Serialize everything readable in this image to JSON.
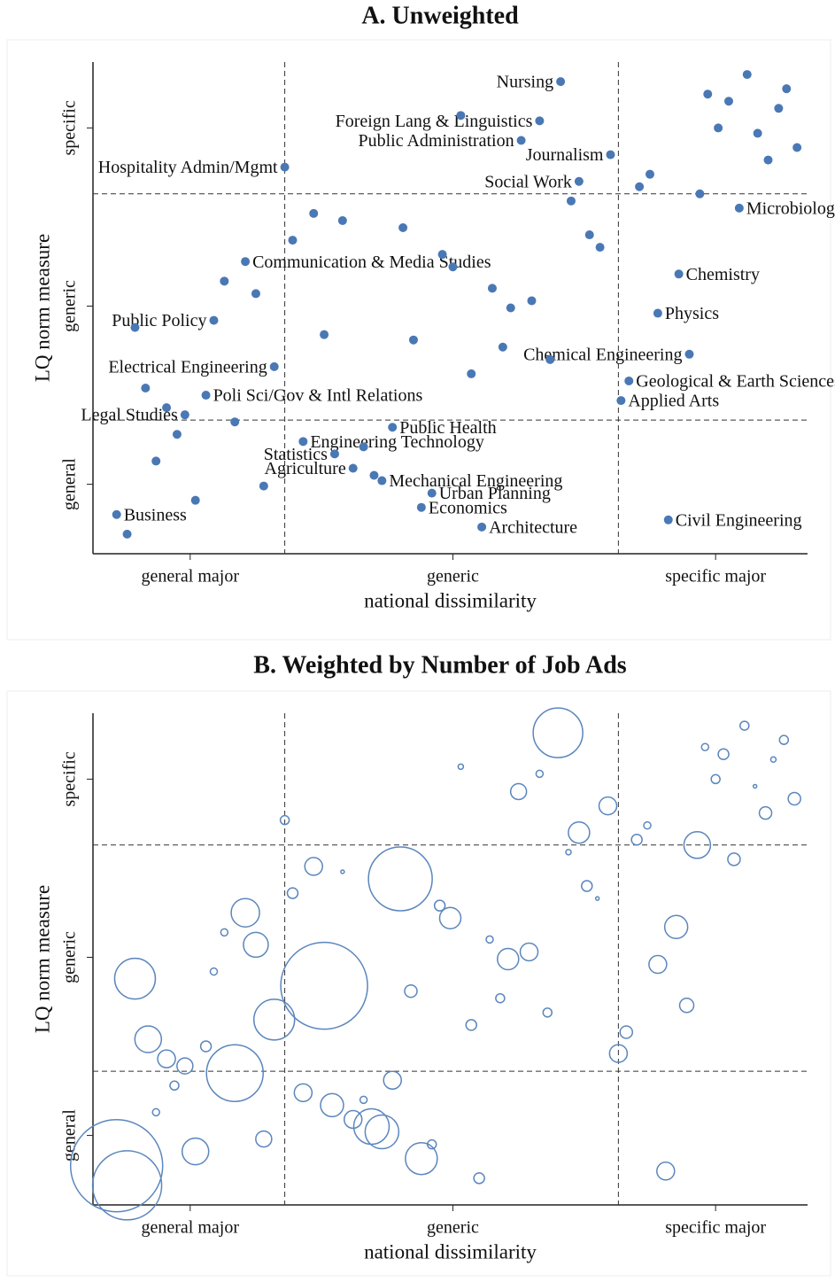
{
  "chart_data": [
    {
      "type": "scatter",
      "title": "A.  Unweighted",
      "xlabel": "national dissimilarity",
      "ylabel": "LQ norm measure",
      "color": "#4a78b5",
      "xlim": [
        0.63,
        3.35
      ],
      "ylim": [
        0.61,
        3.37
      ],
      "xticks": [
        {
          "value": 1,
          "label": "general major"
        },
        {
          "value": 2,
          "label": "generic"
        },
        {
          "value": 3,
          "label": "specific major"
        }
      ],
      "yticks": [
        {
          "value": 1,
          "label": "general"
        },
        {
          "value": 2,
          "label": "generic"
        },
        {
          "value": 3,
          "label": "specific"
        }
      ],
      "vlines": [
        1.36,
        2.63
      ],
      "hlines": [
        1.36,
        2.63
      ],
      "x": [
        2.41,
        2.33,
        2.03,
        2.26,
        2.6,
        1.36,
        2.48,
        2.71,
        2.75,
        2.97,
        3.05,
        3.12,
        3.27,
        3.24,
        3.01,
        3.16,
        3.2,
        3.31,
        2.94,
        3.09,
        2.45,
        1.47,
        1.58,
        1.81,
        1.39,
        2.52,
        2.56,
        1.21,
        1.96,
        2.0,
        1.13,
        1.25,
        2.15,
        2.22,
        2.3,
        2.86,
        2.78,
        1.09,
        0.79,
        1.51,
        1.85,
        2.19,
        2.9,
        2.37,
        1.32,
        2.07,
        2.67,
        0.83,
        1.06,
        2.64,
        0.91,
        0.98,
        1.17,
        1.77,
        0.95,
        1.43,
        1.66,
        1.55,
        0.87,
        1.62,
        1.7,
        1.73,
        1.28,
        1.92,
        1.02,
        1.88,
        0.72,
        2.11,
        0.76,
        2.82
      ],
      "y": [
        3.26,
        3.04,
        3.07,
        2.93,
        2.85,
        2.78,
        2.7,
        2.67,
        2.74,
        3.19,
        3.15,
        3.3,
        3.22,
        3.11,
        3.0,
        2.97,
        2.82,
        2.89,
        2.63,
        2.55,
        2.59,
        2.52,
        2.48,
        2.44,
        2.37,
        2.4,
        2.33,
        2.25,
        2.29,
        2.22,
        2.14,
        2.07,
        2.1,
        1.99,
        2.03,
        2.18,
        1.96,
        1.92,
        1.88,
        1.84,
        1.81,
        1.77,
        1.73,
        1.7,
        1.66,
        1.62,
        1.58,
        1.54,
        1.5,
        1.47,
        1.43,
        1.39,
        1.35,
        1.32,
        1.28,
        1.24,
        1.21,
        1.17,
        1.13,
        1.09,
        1.05,
        1.02,
        0.99,
        0.95,
        0.91,
        0.87,
        0.83,
        0.76,
        0.72,
        0.8
      ],
      "labels": [
        "Nursing",
        "Foreign Lang & Linguistics",
        null,
        "Public Administration",
        "Journalism",
        "Hospitality Admin/Mgmt",
        "Social Work",
        null,
        null,
        null,
        null,
        null,
        null,
        null,
        null,
        null,
        null,
        null,
        null,
        "Microbiology",
        null,
        null,
        null,
        null,
        null,
        null,
        null,
        "Communication & Media Studies",
        null,
        null,
        null,
        null,
        null,
        null,
        null,
        "Chemistry",
        "Physics",
        "Public Policy",
        null,
        null,
        null,
        null,
        "Chemical Engineering",
        null,
        "Electrical Engineering",
        null,
        "Geological & Earth Sciences",
        null,
        "Poli Sci/Gov & Intl Relations",
        "Applied Arts",
        null,
        "Legal Studies",
        null,
        "Public Health",
        null,
        "Engineering Technology",
        null,
        "Statistics",
        null,
        "Agriculture",
        null,
        "Mechanical Engineering",
        null,
        "Urban Planning",
        null,
        "Economics",
        "Business",
        "Architecture",
        null,
        "Civil Engineering"
      ]
    },
    {
      "type": "bubble",
      "title": "B.  Weighted by Number of Job Ads",
      "xlabel": "national dissimilarity",
      "ylabel": "LQ norm measure",
      "color": "#5b86bd",
      "xlim": [
        0.63,
        3.35
      ],
      "ylim": [
        0.61,
        3.37
      ],
      "xticks": [
        {
          "value": 1,
          "label": "general major"
        },
        {
          "value": 2,
          "label": "generic"
        },
        {
          "value": 3,
          "label": "specific major"
        }
      ],
      "yticks": [
        {
          "value": 1,
          "label": "general"
        },
        {
          "value": 2,
          "label": "generic"
        },
        {
          "value": 3,
          "label": "specific"
        }
      ],
      "vlines": [
        1.36,
        2.63
      ],
      "hlines": [
        1.36,
        2.63
      ],
      "x": [
        2.4,
        2.03,
        2.33,
        2.25,
        2.59,
        1.36,
        2.48,
        2.7,
        2.74,
        2.96,
        3.03,
        3.11,
        3.26,
        3.22,
        3.0,
        3.15,
        3.19,
        3.3,
        2.93,
        3.07,
        2.44,
        1.47,
        1.58,
        1.8,
        1.39,
        2.51,
        2.55,
        1.21,
        1.95,
        1.99,
        1.13,
        1.25,
        2.14,
        2.21,
        2.29,
        2.85,
        2.78,
        1.09,
        0.79,
        1.51,
        1.84,
        2.18,
        2.89,
        2.36,
        1.32,
        2.07,
        2.66,
        0.84,
        1.06,
        2.63,
        0.91,
        0.98,
        1.17,
        1.77,
        0.94,
        1.43,
        1.66,
        1.54,
        0.87,
        1.62,
        1.69,
        1.73,
        1.28,
        1.92,
        1.02,
        1.88,
        0.72,
        2.1,
        0.76,
        2.81
      ],
      "y": [
        3.26,
        3.07,
        3.03,
        2.93,
        2.85,
        2.77,
        2.7,
        2.66,
        2.74,
        3.18,
        3.14,
        3.3,
        3.22,
        3.11,
        3.0,
        2.96,
        2.81,
        2.89,
        2.63,
        2.55,
        2.59,
        2.51,
        2.48,
        2.44,
        2.36,
        2.4,
        2.33,
        2.25,
        2.29,
        2.22,
        2.14,
        2.07,
        2.1,
        1.99,
        2.03,
        2.17,
        1.96,
        1.92,
        1.88,
        1.84,
        1.81,
        1.77,
        1.73,
        1.69,
        1.65,
        1.62,
        1.58,
        1.54,
        1.5,
        1.46,
        1.43,
        1.39,
        1.35,
        1.31,
        1.28,
        1.24,
        1.2,
        1.17,
        1.13,
        1.09,
        1.05,
        1.02,
        0.98,
        0.95,
        0.91,
        0.87,
        0.83,
        0.76,
        0.72,
        0.8
      ],
      "sizes": [
        784,
        9,
        16,
        81,
        100,
        25,
        144,
        36,
        16,
        16,
        36,
        25,
        25,
        9,
        25,
        4,
        49,
        49,
        225,
        49,
        9,
        100,
        4,
        1296,
        36,
        36,
        4,
        256,
        36,
        144,
        16,
        196,
        16,
        144,
        100,
        169,
        100,
        16,
        529,
        2401,
        49,
        25,
        64,
        25,
        529,
        36,
        49,
        225,
        36,
        100,
        100,
        81,
        1024,
        100,
        25,
        100,
        16,
        169,
        16,
        100,
        400,
        361,
        81,
        25,
        225,
        324,
        2704,
        36,
        1521,
        100
      ]
    }
  ]
}
